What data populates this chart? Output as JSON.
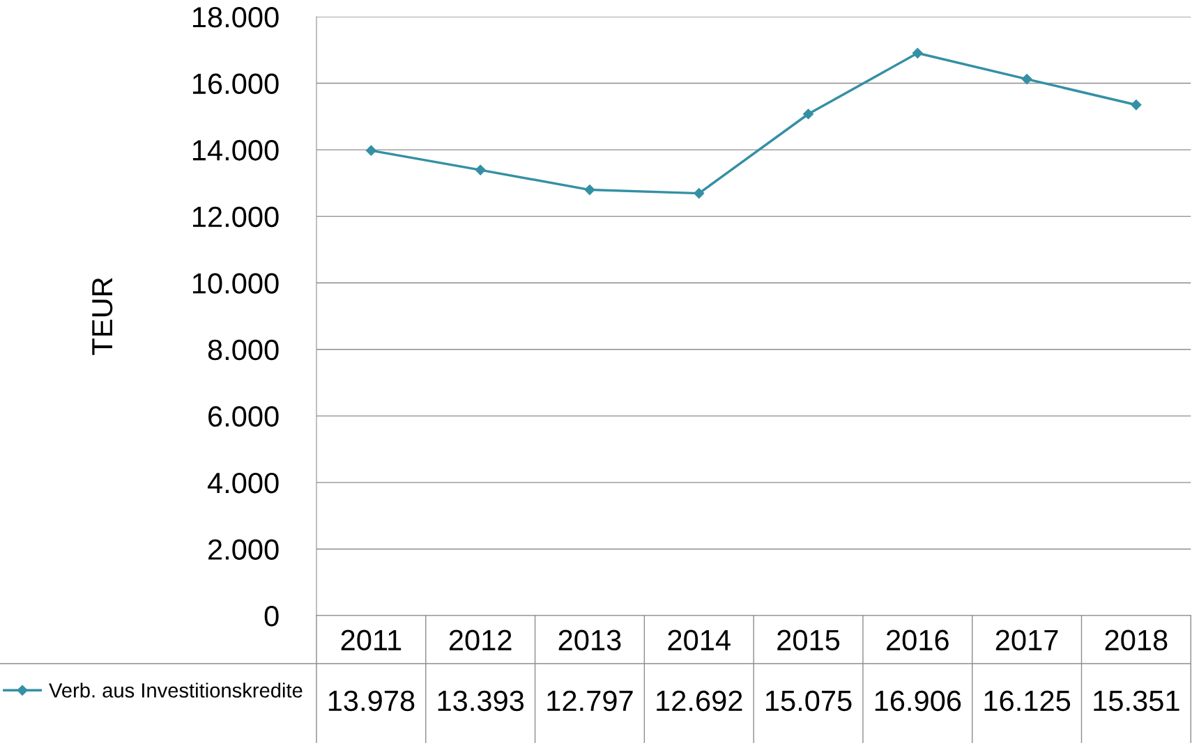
{
  "chart_data": {
    "type": "line",
    "ylabel": "TEUR",
    "categories": [
      "2011",
      "2012",
      "2013",
      "2014",
      "2015",
      "2016",
      "2017",
      "2018"
    ],
    "series": [
      {
        "name": "Verb. aus Investitionskredite",
        "color": "#3490a4",
        "values": [
          13978,
          13393,
          12797,
          12692,
          15075,
          16906,
          16125,
          15351
        ],
        "value_labels": [
          "13.978",
          "13.393",
          "12.797",
          "12.692",
          "15.075",
          "16.906",
          "16.125",
          "15.351"
        ]
      }
    ],
    "ylim": [
      0,
      18000
    ],
    "yticks": [
      0,
      {
        "value": 2000,
        "label": "2.000"
      },
      {
        "value": 4000,
        "label": "4.000"
      },
      {
        "value": 6000,
        "label": "6.000"
      },
      {
        "value": 8000,
        "label": "8.000"
      },
      {
        "value": 10000,
        "label": "10.000"
      },
      {
        "value": 12000,
        "label": "12.000"
      },
      {
        "value": 14000,
        "label": "14.000"
      },
      {
        "value": 16000,
        "label": "16.000"
      },
      {
        "value": 18000,
        "label": "18.000"
      }
    ],
    "grid": "y",
    "legend": "bottom left",
    "marker": "diamond",
    "line_style": "solid"
  }
}
